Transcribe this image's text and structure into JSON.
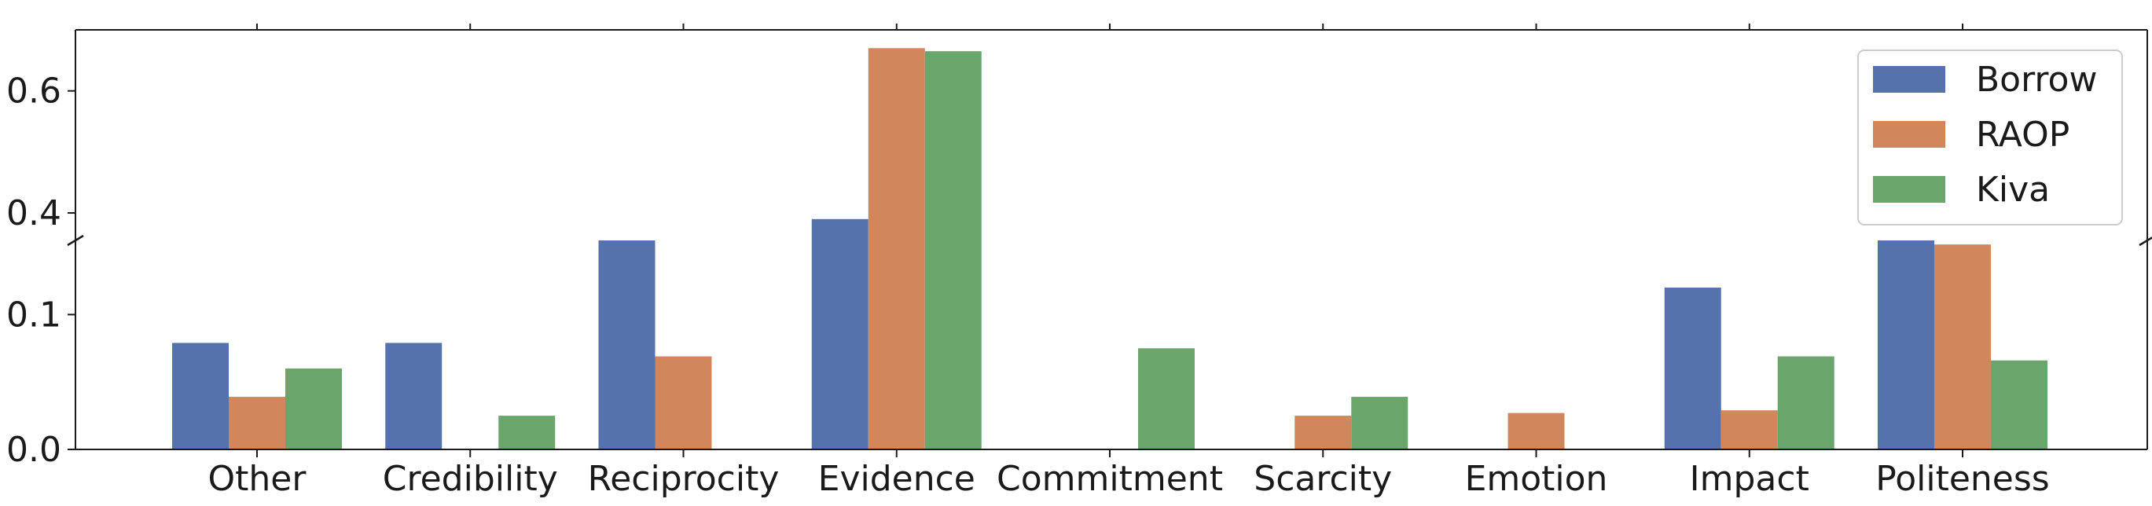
{
  "chart_data": {
    "type": "bar",
    "title": "",
    "xlabel": "",
    "ylabel": "",
    "categories": [
      "Other",
      "Credibility",
      "Reciprocity",
      "Evidence",
      "Commitment",
      "Scarcity",
      "Emotion",
      "Impact",
      "Politeness"
    ],
    "series": [
      {
        "name": "Borrow",
        "color": "#5572ac",
        "values": [
          0.079,
          0.079,
          0.155,
          0.39,
          0.0,
          0.0,
          0.0,
          0.12,
          0.155
        ]
      },
      {
        "name": "RAOP",
        "color": "#d0875b",
        "values": [
          0.039,
          0.0,
          0.069,
          0.67,
          0.0,
          0.025,
          0.027,
          0.029,
          0.152
        ]
      },
      {
        "name": "Kiva",
        "color": "#6aa56c",
        "values": [
          0.06,
          0.025,
          0.0,
          0.665,
          0.075,
          0.039,
          0.0,
          0.069,
          0.066
        ]
      }
    ],
    "axis_break": {
      "lower_range": [
        0,
        0.155
      ],
      "upper_range": [
        0.355,
        0.7
      ],
      "lower_ticks": [
        {
          "value": 0.0,
          "label": "0.0"
        },
        {
          "value": 0.1,
          "label": "0.1"
        }
      ],
      "upper_ticks": [
        {
          "value": 0.4,
          "label": "0.4"
        },
        {
          "value": 0.6,
          "label": "0.6"
        }
      ]
    },
    "legend": {
      "position": "top-right"
    },
    "grid": false
  }
}
